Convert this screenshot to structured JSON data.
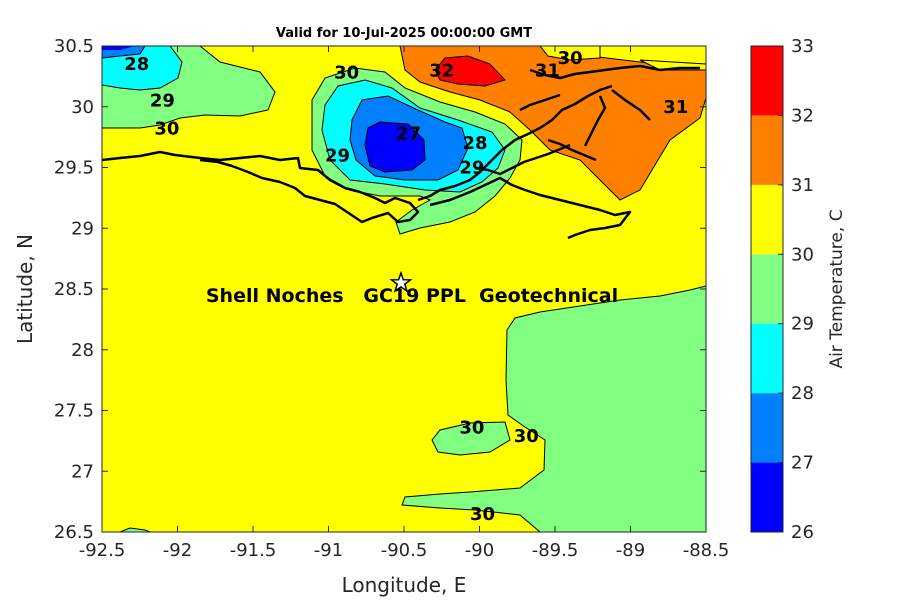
{
  "chart_data": {
    "type": "heatmap",
    "title": "Valid for 10-Jul-2025 00:00:00 GMT",
    "xlabel": "Longitude, E",
    "ylabel": "Latitude, N",
    "xlim": [
      -92.5,
      -88.5
    ],
    "ylim": [
      26.5,
      30.5
    ],
    "xticks": [
      "-92.5",
      "-92",
      "-91.5",
      "-91",
      "-90.5",
      "-90",
      "-89.5",
      "-89",
      "-88.5"
    ],
    "yticks": [
      "26.5",
      "27",
      "27.5",
      "28",
      "28.5",
      "29",
      "29.5",
      "30",
      "30.5"
    ],
    "colorbar": {
      "label": "Air Temperature, C",
      "ticks": [
        "26",
        "27",
        "28",
        "29",
        "30",
        "31",
        "32",
        "33"
      ],
      "levels": [
        26,
        27,
        28,
        29,
        30,
        31,
        32,
        33
      ],
      "colors": [
        "#0000ff",
        "#0080ff",
        "#00ffff",
        "#80ff80",
        "#ffff00",
        "#ff8000",
        "#ff0000",
        "#800000"
      ]
    },
    "contour_labels": [
      {
        "text": "28",
        "lon": -92.27,
        "lat": 30.35
      },
      {
        "text": "29",
        "lon": -92.1,
        "lat": 30.05
      },
      {
        "text": "30",
        "lon": -92.07,
        "lat": 29.82
      },
      {
        "text": "30",
        "lon": -90.88,
        "lat": 30.28
      },
      {
        "text": "27",
        "lon": -90.47,
        "lat": 29.78
      },
      {
        "text": "28",
        "lon": -90.03,
        "lat": 29.7
      },
      {
        "text": "29",
        "lon": -90.94,
        "lat": 29.6
      },
      {
        "text": "29",
        "lon": -90.05,
        "lat": 29.5
      },
      {
        "text": "32",
        "lon": -90.25,
        "lat": 30.3
      },
      {
        "text": "30",
        "lon": -89.4,
        "lat": 30.4
      },
      {
        "text": "31",
        "lon": -89.55,
        "lat": 30.3
      },
      {
        "text": "31",
        "lon": -88.7,
        "lat": 30.0
      },
      {
        "text": "30",
        "lon": -90.05,
        "lat": 27.36
      },
      {
        "text": "30",
        "lon": -89.69,
        "lat": 27.29
      },
      {
        "text": "30",
        "lon": -89.98,
        "lat": 26.65
      }
    ],
    "site": {
      "name": "Shell Noches   GC19 PPL  Geotechnical",
      "lon": -90.52,
      "lat": 28.55
    }
  }
}
